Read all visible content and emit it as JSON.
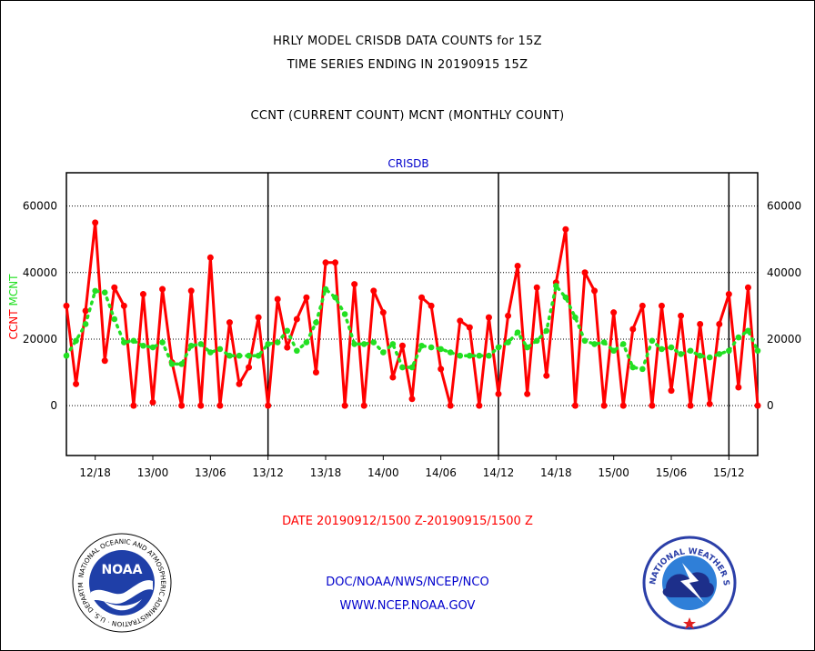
{
  "title_line1": "HRLY MODEL CRISDB DATA COUNTS for 15Z",
  "title_line2": "TIME SERIES ENDING IN 20190915 15Z",
  "subtitle": "CCNT (CURRENT COUNT) MCNT (MONTHLY COUNT)",
  "date_range": "DATE 20190912/1500 Z-20190915/1500 Z",
  "footer_org": "DOC/NOAA/NWS/NCEP/NCO",
  "footer_url": "WWW.NCEP.NOAA.GOV",
  "logos": {
    "noaa_text": "NOAA",
    "noaa_ring": "NATIONAL OCEANIC AND ATMOSPHERIC ADMINISTRATION · U.S. DEPARTMENT OF COMMERCE ·",
    "nws_ring": "NATIONAL WEATHER SERVICE"
  },
  "colors": {
    "ccnt": "#ff0000",
    "mcnt": "#22e022",
    "plot_label": "#0000cc"
  },
  "chart_data": {
    "type": "line",
    "title": "CRISDB",
    "ylabel_ccnt": "CCNT",
    "ylabel_mcnt": "MCNT",
    "ylim": [
      -15000,
      70000
    ],
    "yticks": [
      0,
      20000,
      40000,
      60000
    ],
    "ytick_labels": [
      "0",
      "20000",
      "40000",
      "60000"
    ],
    "grid": true,
    "x_unit": "hours since 12/15Z",
    "xlim": [
      0,
      72
    ],
    "xticks": [
      3,
      9,
      15,
      21,
      27,
      33,
      39,
      45,
      51,
      57,
      63,
      69
    ],
    "xtick_labels": [
      "12/18",
      "13/00",
      "13/06",
      "13/12",
      "13/18",
      "14/00",
      "14/06",
      "14/12",
      "14/18",
      "15/00",
      "15/06",
      "15/12"
    ],
    "day_separators": [
      21,
      45,
      69
    ],
    "series": [
      {
        "name": "CCNT",
        "values": [
          30000,
          6500,
          28500,
          55000,
          13500,
          35500,
          30000,
          0,
          33500,
          1000,
          35000,
          13000,
          0,
          34500,
          0,
          44500,
          0,
          25000,
          6500,
          11500,
          26500,
          0,
          32000,
          17500,
          26000,
          32500,
          10000,
          43000,
          43000,
          0,
          36500,
          0,
          34500,
          28000,
          8500,
          18000,
          2000,
          32500,
          30000,
          11000,
          0,
          25500,
          23500,
          0,
          26500,
          3500,
          27000,
          42000,
          3500,
          35500,
          9000,
          37000,
          53000,
          0,
          40000,
          34500,
          0,
          28000,
          0,
          23000,
          30000,
          0,
          30000,
          4500,
          27000,
          0,
          24500,
          500,
          24500,
          33500,
          5500,
          35500,
          0
        ]
      },
      {
        "name": "MCNT",
        "values": [
          15000,
          19500,
          24500,
          34500,
          34000,
          26000,
          19000,
          19500,
          18000,
          17500,
          19000,
          12500,
          12500,
          18000,
          18500,
          16000,
          17000,
          15000,
          15000,
          15000,
          15000,
          18500,
          19000,
          22500,
          16500,
          19000,
          25000,
          35000,
          32500,
          27500,
          18500,
          18500,
          19000,
          16000,
          18500,
          11500,
          11500,
          18000,
          17500,
          17000,
          16000,
          15000,
          15000,
          15000,
          15000,
          17500,
          19000,
          22000,
          17500,
          19500,
          22500,
          36000,
          32500,
          26500,
          19500,
          18500,
          19000,
          16500,
          18500,
          11500,
          11000,
          19500,
          17000,
          17500,
          15500,
          16500,
          15000,
          14500,
          15500,
          16500,
          20500,
          22500,
          16500
        ]
      }
    ]
  }
}
